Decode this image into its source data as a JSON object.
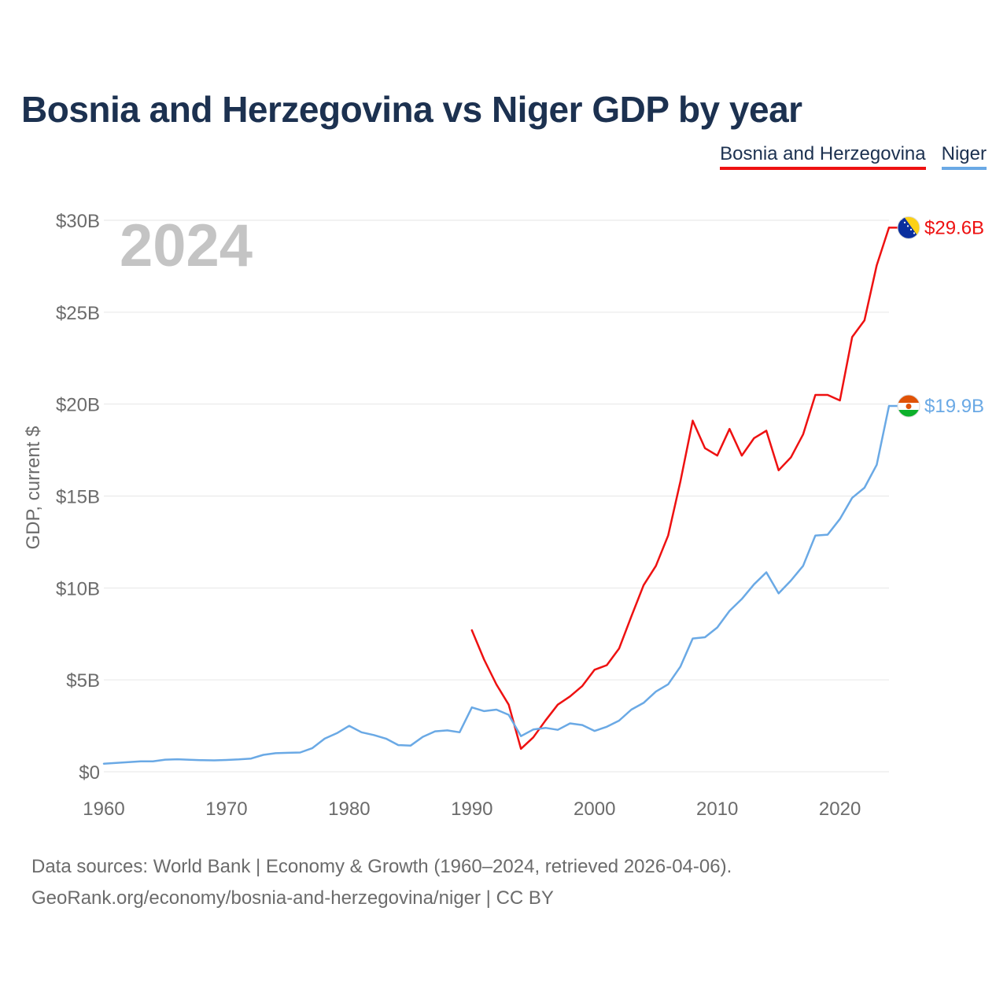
{
  "chart_data": {
    "type": "line",
    "title": "Bosnia and Herzegovina vs Niger GDP by year",
    "ylabel": "GDP, current $",
    "xlabel": "",
    "current_year_label": "2024",
    "xlim": [
      1960,
      2024
    ],
    "ylim": [
      0,
      30
    ],
    "y_unit": "billion USD",
    "x_ticks": [
      1960,
      1970,
      1980,
      1990,
      2000,
      2010,
      2020
    ],
    "y_ticks": [
      {
        "value": 0,
        "label": "$0"
      },
      {
        "value": 5,
        "label": "$5B"
      },
      {
        "value": 10,
        "label": "$10B"
      },
      {
        "value": 15,
        "label": "$15B"
      },
      {
        "value": 20,
        "label": "$20B"
      },
      {
        "value": 25,
        "label": "$25B"
      },
      {
        "value": 30,
        "label": "$30B"
      }
    ],
    "grid": true,
    "legend_position": "top-right",
    "series": [
      {
        "name": "Bosnia and Herzegovina",
        "color": "#ee1111",
        "end_label": "$29.6B",
        "flag_icon": "bosnia-flag-icon",
        "x": [
          1990,
          1991,
          1992,
          1993,
          1994,
          1995,
          1996,
          1997,
          1998,
          1999,
          2000,
          2001,
          2002,
          2003,
          2004,
          2005,
          2006,
          2007,
          2008,
          2009,
          2010,
          2011,
          2012,
          2013,
          2014,
          2015,
          2016,
          2017,
          2018,
          2019,
          2020,
          2021,
          2022,
          2023,
          2024
        ],
        "values": [
          7.7,
          6.1,
          4.75,
          3.65,
          1.25,
          1.87,
          2.79,
          3.65,
          4.1,
          4.67,
          5.55,
          5.8,
          6.7,
          8.45,
          10.15,
          11.2,
          12.85,
          15.8,
          19.1,
          17.6,
          17.2,
          18.65,
          17.2,
          18.15,
          18.55,
          16.4,
          17.1,
          18.35,
          20.5,
          20.5,
          20.2,
          23.65,
          24.55,
          27.55,
          29.6
        ]
      },
      {
        "name": "Niger",
        "color": "#6aa9e5",
        "end_label": "$19.9B",
        "flag_icon": "niger-flag-icon",
        "x": [
          1960,
          1961,
          1962,
          1963,
          1964,
          1965,
          1966,
          1967,
          1968,
          1969,
          1970,
          1971,
          1972,
          1973,
          1974,
          1975,
          1976,
          1977,
          1978,
          1979,
          1980,
          1981,
          1982,
          1983,
          1984,
          1985,
          1986,
          1987,
          1988,
          1989,
          1990,
          1991,
          1992,
          1993,
          1994,
          1995,
          1996,
          1997,
          1998,
          1999,
          2000,
          2001,
          2002,
          2003,
          2004,
          2005,
          2006,
          2007,
          2008,
          2009,
          2010,
          2011,
          2012,
          2013,
          2014,
          2015,
          2016,
          2017,
          2018,
          2019,
          2020,
          2021,
          2022,
          2023,
          2024
        ],
        "values": [
          0.44,
          0.48,
          0.52,
          0.57,
          0.57,
          0.66,
          0.68,
          0.65,
          0.63,
          0.62,
          0.64,
          0.67,
          0.72,
          0.92,
          1.01,
          1.03,
          1.05,
          1.29,
          1.8,
          2.1,
          2.5,
          2.15,
          2.0,
          1.8,
          1.45,
          1.42,
          1.9,
          2.2,
          2.25,
          2.15,
          3.5,
          3.3,
          3.38,
          3.1,
          1.94,
          2.3,
          2.39,
          2.28,
          2.63,
          2.54,
          2.22,
          2.45,
          2.78,
          3.38,
          3.75,
          4.36,
          4.76,
          5.72,
          7.25,
          7.32,
          7.85,
          8.75,
          9.4,
          10.2,
          10.85,
          9.7,
          10.4,
          11.2,
          12.85,
          12.9,
          13.75,
          14.9,
          15.45,
          16.7,
          19.9
        ]
      }
    ]
  },
  "footer": {
    "sources": "Data sources: World Bank | Economy & Growth (1960–2024, retrieved 2026-04-06).",
    "link": "GeoRank.org/economy/bosnia-and-herzegovina/niger | CC BY"
  }
}
